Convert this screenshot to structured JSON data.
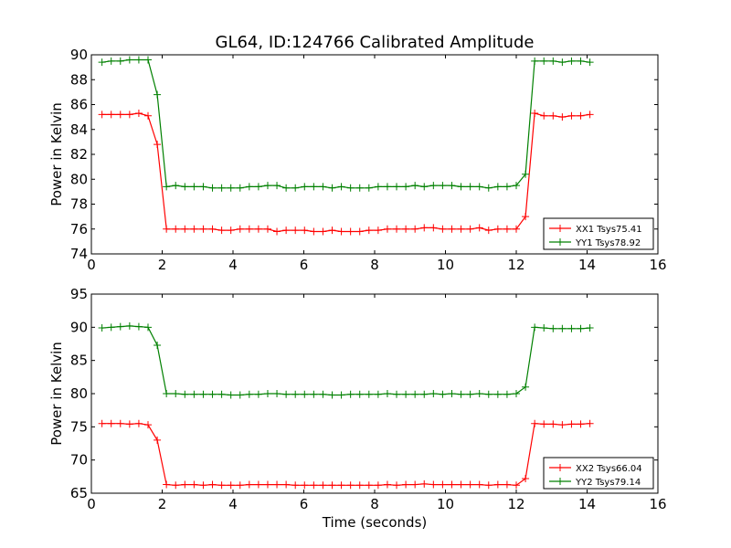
{
  "chart_data": {
    "type": "line",
    "title": "GL64, ID:124766 Calibrated Amplitude",
    "xlabel": "Time (seconds)",
    "colors": {
      "red": "#ff0000",
      "green": "#008000"
    },
    "panels": [
      {
        "ylabel": "Power in Kelvin",
        "xlim": [
          0,
          16
        ],
        "ylim": [
          74,
          90
        ],
        "xticks": [
          "0",
          "2",
          "4",
          "6",
          "8",
          "10",
          "12",
          "14",
          "16"
        ],
        "yticks": [
          "74",
          "76",
          "78",
          "80",
          "82",
          "84",
          "86",
          "88",
          "90"
        ],
        "legend_position": "lower-right",
        "series": [
          {
            "name": "XX1 Tsys75.41",
            "color": "#ff0000",
            "x": [
              0.3,
              0.56,
              0.82,
              1.08,
              1.34,
              1.6,
              1.86,
              2.12,
              2.38,
              2.64,
              2.9,
              3.16,
              3.42,
              3.68,
              3.94,
              4.2,
              4.46,
              4.72,
              4.98,
              5.24,
              5.5,
              5.76,
              6.02,
              6.28,
              6.54,
              6.8,
              7.06,
              7.32,
              7.58,
              7.84,
              8.1,
              8.36,
              8.62,
              8.88,
              9.14,
              9.4,
              9.66,
              9.92,
              10.18,
              10.44,
              10.7,
              10.96,
              11.22,
              11.48,
              11.74,
              12.0,
              12.26,
              12.52,
              12.78,
              13.04,
              13.3,
              13.56,
              13.82,
              14.08
            ],
            "y": [
              85.2,
              85.2,
              85.2,
              85.2,
              85.3,
              85.1,
              82.8,
              76.0,
              76.0,
              76.0,
              76.0,
              76.0,
              76.0,
              75.9,
              75.9,
              76.0,
              76.0,
              76.0,
              76.0,
              75.8,
              75.9,
              75.9,
              75.9,
              75.8,
              75.8,
              75.9,
              75.8,
              75.8,
              75.8,
              75.9,
              75.9,
              76.0,
              76.0,
              76.0,
              76.0,
              76.1,
              76.1,
              76.0,
              76.0,
              76.0,
              76.0,
              76.1,
              75.9,
              76.0,
              76.0,
              76.0,
              77.0,
              85.3,
              85.1,
              85.1,
              85.0,
              85.1,
              85.1,
              85.2
            ]
          },
          {
            "name": "YY1 Tsys78.92",
            "color": "#008000",
            "x": [
              0.3,
              0.56,
              0.82,
              1.08,
              1.34,
              1.6,
              1.86,
              2.12,
              2.38,
              2.64,
              2.9,
              3.16,
              3.42,
              3.68,
              3.94,
              4.2,
              4.46,
              4.72,
              4.98,
              5.24,
              5.5,
              5.76,
              6.02,
              6.28,
              6.54,
              6.8,
              7.06,
              7.32,
              7.58,
              7.84,
              8.1,
              8.36,
              8.62,
              8.88,
              9.14,
              9.4,
              9.66,
              9.92,
              10.18,
              10.44,
              10.7,
              10.96,
              11.22,
              11.48,
              11.74,
              12.0,
              12.26,
              12.52,
              12.78,
              13.04,
              13.3,
              13.56,
              13.82,
              14.08
            ],
            "y": [
              89.4,
              89.5,
              89.5,
              89.6,
              89.6,
              89.6,
              86.8,
              79.4,
              79.5,
              79.4,
              79.4,
              79.4,
              79.3,
              79.3,
              79.3,
              79.3,
              79.4,
              79.4,
              79.5,
              79.5,
              79.3,
              79.3,
              79.4,
              79.4,
              79.4,
              79.3,
              79.4,
              79.3,
              79.3,
              79.3,
              79.4,
              79.4,
              79.4,
              79.4,
              79.5,
              79.4,
              79.5,
              79.5,
              79.5,
              79.4,
              79.4,
              79.4,
              79.3,
              79.4,
              79.4,
              79.5,
              80.4,
              89.5,
              89.5,
              89.5,
              89.4,
              89.5,
              89.5,
              89.4
            ]
          }
        ]
      },
      {
        "ylabel": "Power in Kelvin",
        "xlim": [
          0,
          16
        ],
        "ylim": [
          65,
          95
        ],
        "xticks": [
          "0",
          "2",
          "4",
          "6",
          "8",
          "10",
          "12",
          "14",
          "16"
        ],
        "yticks": [
          "65",
          "70",
          "75",
          "80",
          "85",
          "90",
          "95"
        ],
        "legend_position": "lower-right",
        "series": [
          {
            "name": "XX2 Tsys66.04",
            "color": "#ff0000",
            "x": [
              0.3,
              0.56,
              0.82,
              1.08,
              1.34,
              1.6,
              1.86,
              2.12,
              2.38,
              2.64,
              2.9,
              3.16,
              3.42,
              3.68,
              3.94,
              4.2,
              4.46,
              4.72,
              4.98,
              5.24,
              5.5,
              5.76,
              6.02,
              6.28,
              6.54,
              6.8,
              7.06,
              7.32,
              7.58,
              7.84,
              8.1,
              8.36,
              8.62,
              8.88,
              9.14,
              9.4,
              9.66,
              9.92,
              10.18,
              10.44,
              10.7,
              10.96,
              11.22,
              11.48,
              11.74,
              12.0,
              12.26,
              12.52,
              12.78,
              13.04,
              13.3,
              13.56,
              13.82,
              14.08
            ],
            "y": [
              75.5,
              75.5,
              75.5,
              75.4,
              75.5,
              75.3,
              73.0,
              66.3,
              66.2,
              66.3,
              66.3,
              66.2,
              66.3,
              66.2,
              66.2,
              66.2,
              66.3,
              66.3,
              66.3,
              66.3,
              66.3,
              66.2,
              66.2,
              66.2,
              66.2,
              66.2,
              66.2,
              66.2,
              66.2,
              66.2,
              66.2,
              66.3,
              66.2,
              66.3,
              66.3,
              66.4,
              66.3,
              66.3,
              66.3,
              66.3,
              66.3,
              66.3,
              66.2,
              66.3,
              66.3,
              66.2,
              67.2,
              75.5,
              75.4,
              75.4,
              75.3,
              75.4,
              75.4,
              75.5
            ]
          },
          {
            "name": "YY2 Tsys79.14",
            "color": "#008000",
            "x": [
              0.3,
              0.56,
              0.82,
              1.08,
              1.34,
              1.6,
              1.86,
              2.12,
              2.38,
              2.64,
              2.9,
              3.16,
              3.42,
              3.68,
              3.94,
              4.2,
              4.46,
              4.72,
              4.98,
              5.24,
              5.5,
              5.76,
              6.02,
              6.28,
              6.54,
              6.8,
              7.06,
              7.32,
              7.58,
              7.84,
              8.1,
              8.36,
              8.62,
              8.88,
              9.14,
              9.4,
              9.66,
              9.92,
              10.18,
              10.44,
              10.7,
              10.96,
              11.22,
              11.48,
              11.74,
              12.0,
              12.26,
              12.52,
              12.78,
              13.04,
              13.3,
              13.56,
              13.82,
              14.08
            ],
            "y": [
              89.9,
              90.0,
              90.1,
              90.2,
              90.1,
              90.0,
              87.3,
              80.0,
              80.0,
              79.9,
              79.9,
              79.9,
              79.9,
              79.9,
              79.8,
              79.8,
              79.9,
              79.9,
              80.0,
              80.0,
              79.9,
              79.9,
              79.9,
              79.9,
              79.9,
              79.8,
              79.8,
              79.9,
              79.9,
              79.9,
              79.9,
              80.0,
              79.9,
              79.9,
              79.9,
              79.9,
              80.0,
              79.9,
              80.0,
              79.9,
              79.9,
              80.0,
              79.9,
              79.9,
              79.9,
              80.0,
              81.0,
              90.0,
              89.9,
              89.8,
              89.8,
              89.8,
              89.8,
              89.9
            ]
          }
        ]
      }
    ]
  }
}
